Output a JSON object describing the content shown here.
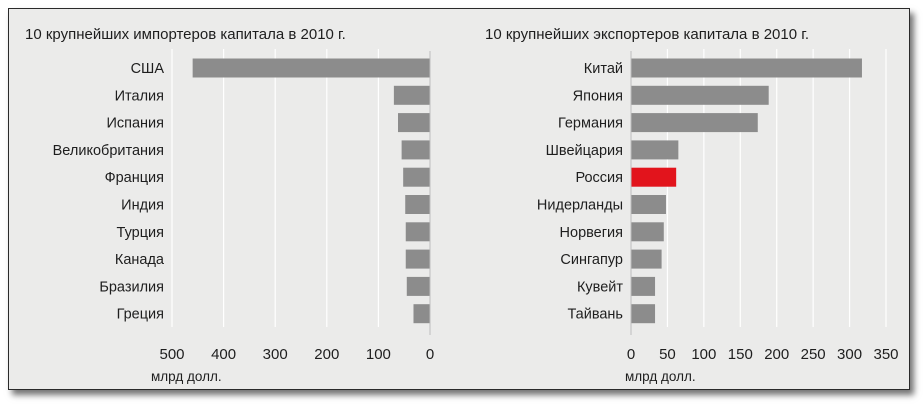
{
  "chart_data": [
    {
      "type": "bar",
      "orientation": "horizontal",
      "direction": "right-to-left",
      "title": "10 крупнейших импортеров капитала в 2010 г.",
      "categories": [
        "США",
        "Италия",
        "Испания",
        "Великобритания",
        "Франция",
        "Индия",
        "Турция",
        "Канада",
        "Бразилия",
        "Греция"
      ],
      "values": [
        460,
        70,
        62,
        55,
        52,
        48,
        47,
        47,
        45,
        32
      ],
      "xlim": [
        0,
        500
      ],
      "ticks": [
        "500",
        "400",
        "300",
        "200",
        "100",
        "0"
      ],
      "tick_values": [
        500,
        400,
        300,
        200,
        100,
        0
      ],
      "unit": "млрд долл.",
      "bar_color": "#8c8c8c",
      "highlight": null,
      "grid": true
    },
    {
      "type": "bar",
      "orientation": "horizontal",
      "direction": "left-to-right",
      "title": "10 крупнейших экспортеров капитала в 2010 г.",
      "categories": [
        "Китай",
        "Япония",
        "Германия",
        "Швейцария",
        "Россия",
        "Нидерланды",
        "Норвегия",
        "Сингапур",
        "Кувейт",
        "Тайвань"
      ],
      "values": [
        317,
        189,
        174,
        65,
        62,
        48,
        45,
        42,
        33,
        33
      ],
      "xlim": [
        0,
        350
      ],
      "ticks": [
        "0",
        "50",
        "100",
        "150",
        "200",
        "250",
        "300",
        "350"
      ],
      "tick_values": [
        0,
        50,
        100,
        150,
        200,
        250,
        300,
        350
      ],
      "unit": "млрд долл.",
      "bar_color": "#8c8c8c",
      "highlight": {
        "category": "Россия",
        "color": "#e2141c"
      },
      "grid": true
    }
  ]
}
